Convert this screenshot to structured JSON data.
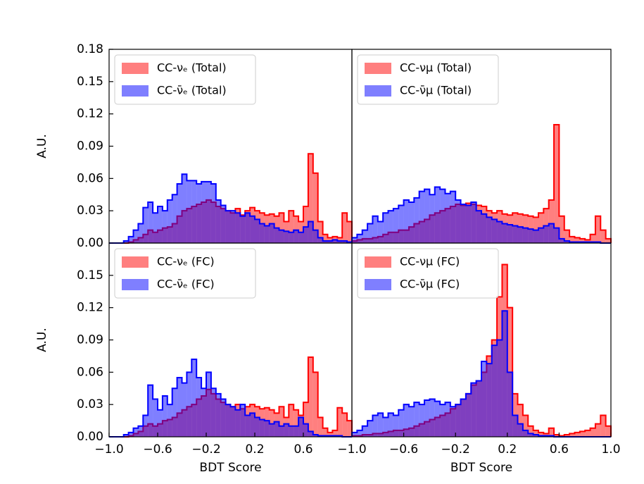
{
  "chart_data": [
    {
      "type": "histogram",
      "bins": [
        -1,
        -0.96,
        -0.92,
        -0.88,
        -0.84,
        -0.8,
        -0.76,
        -0.72,
        -0.68,
        -0.64,
        -0.6,
        -0.56,
        -0.52,
        -0.48,
        -0.44,
        -0.4,
        -0.36,
        -0.32,
        -0.28,
        -0.24,
        -0.2,
        -0.16,
        -0.12,
        -0.08,
        -0.04,
        0,
        0.04,
        0.08,
        0.12,
        0.16,
        0.2,
        0.24,
        0.28,
        0.32,
        0.36,
        0.4,
        0.44,
        0.48,
        0.52,
        0.56,
        0.6,
        0.64,
        0.68,
        0.72,
        0.76,
        0.8,
        0.84,
        0.88,
        0.92,
        0.96,
        1
      ],
      "series": [
        {
          "name": "CC-νₑ (Total)",
          "color": "#ff0000",
          "values": [
            0,
            0,
            0,
            0,
            0.001,
            0.003,
            0.005,
            0.008,
            0.012,
            0.01,
            0.012,
            0.014,
            0.015,
            0.018,
            0.025,
            0.03,
            0.032,
            0.034,
            0.036,
            0.038,
            0.04,
            0.038,
            0.034,
            0.032,
            0.03,
            0.028,
            0.032,
            0.026,
            0.03,
            0.033,
            0.03,
            0.028,
            0.026,
            0.027,
            0.025,
            0.028,
            0.02,
            0.03,
            0.025,
            0.02,
            0.034,
            0.083,
            0.065,
            0.02,
            0.008,
            0.005,
            0.006,
            0.005,
            0.028,
            0.02
          ]
        },
        {
          "name": "CC-ν̄ₑ (Total)",
          "color": "#0000ff",
          "values": [
            0,
            0,
            0,
            0.002,
            0.006,
            0.012,
            0.018,
            0.033,
            0.038,
            0.028,
            0.034,
            0.03,
            0.04,
            0.045,
            0.055,
            0.064,
            0.058,
            0.058,
            0.055,
            0.057,
            0.057,
            0.055,
            0.04,
            0.035,
            0.03,
            0.03,
            0.028,
            0.025,
            0.028,
            0.025,
            0.022,
            0.018,
            0.016,
            0.018,
            0.014,
            0.012,
            0.011,
            0.01,
            0.012,
            0.01,
            0.015,
            0.02,
            0.012,
            0.005,
            0.002,
            0.002,
            0.003,
            0.002,
            0.002,
            0.001
          ]
        }
      ],
      "xlim": [
        -1,
        1
      ],
      "ylim": [
        0,
        0.18
      ],
      "yticks": [
        {
          "value": 0,
          "label": "0.00"
        },
        0.03,
        0.06,
        0.09,
        0.12,
        0.15,
        0.18
      ],
      "ylabel": "A.U.",
      "legend": "upper left"
    },
    {
      "type": "histogram",
      "bins": [
        -1,
        -0.96,
        -0.92,
        -0.88,
        -0.84,
        -0.8,
        -0.76,
        -0.72,
        -0.68,
        -0.64,
        -0.6,
        -0.56,
        -0.52,
        -0.48,
        -0.44,
        -0.4,
        -0.36,
        -0.32,
        -0.28,
        -0.24,
        -0.2,
        -0.16,
        -0.12,
        -0.08,
        -0.04,
        0,
        0.04,
        0.08,
        0.12,
        0.16,
        0.2,
        0.24,
        0.28,
        0.32,
        0.36,
        0.4,
        0.44,
        0.48,
        0.52,
        0.56,
        0.6,
        0.64,
        0.68,
        0.72,
        0.76,
        0.8,
        0.84,
        0.88,
        0.92,
        0.96,
        1
      ],
      "series": [
        {
          "name": "CC-νμ (Total)",
          "color": "#ff0000",
          "values": [
            0.002,
            0.003,
            0.004,
            0.004,
            0.005,
            0.006,
            0.008,
            0.01,
            0.01,
            0.012,
            0.012,
            0.015,
            0.018,
            0.02,
            0.022,
            0.026,
            0.028,
            0.03,
            0.032,
            0.034,
            0.036,
            0.035,
            0.037,
            0.036,
            0.035,
            0.034,
            0.03,
            0.028,
            0.03,
            0.027,
            0.026,
            0.028,
            0.027,
            0.026,
            0.025,
            0.024,
            0.028,
            0.032,
            0.04,
            0.11,
            0.025,
            0.012,
            0.006,
            0.005,
            0.004,
            0.003,
            0.008,
            0.025,
            0.012,
            0.004
          ]
        },
        {
          "name": "CC-ν̄μ (Total)",
          "color": "#0000ff",
          "values": [
            0.005,
            0.008,
            0.012,
            0.018,
            0.025,
            0.02,
            0.028,
            0.03,
            0.032,
            0.035,
            0.04,
            0.038,
            0.042,
            0.048,
            0.05,
            0.045,
            0.052,
            0.05,
            0.046,
            0.048,
            0.04,
            0.036,
            0.035,
            0.038,
            0.03,
            0.027,
            0.024,
            0.022,
            0.02,
            0.018,
            0.017,
            0.016,
            0.015,
            0.014,
            0.013,
            0.012,
            0.014,
            0.016,
            0.018,
            0.014,
            0.004,
            0.002,
            0.001,
            0.001,
            0.001,
            0.001,
            0.001,
            0.001,
            0,
            0
          ]
        }
      ],
      "xlim": [
        -1,
        1
      ],
      "ylim": [
        0,
        0.18
      ],
      "legend": "upper left"
    },
    {
      "type": "histogram",
      "bins": [
        -1,
        -0.96,
        -0.92,
        -0.88,
        -0.84,
        -0.8,
        -0.76,
        -0.72,
        -0.68,
        -0.64,
        -0.6,
        -0.56,
        -0.52,
        -0.48,
        -0.44,
        -0.4,
        -0.36,
        -0.32,
        -0.28,
        -0.24,
        -0.2,
        -0.16,
        -0.12,
        -0.08,
        -0.04,
        0,
        0.04,
        0.08,
        0.12,
        0.16,
        0.2,
        0.24,
        0.28,
        0.32,
        0.36,
        0.4,
        0.44,
        0.48,
        0.52,
        0.56,
        0.6,
        0.64,
        0.68,
        0.72,
        0.76,
        0.8,
        0.84,
        0.88,
        0.92,
        0.96,
        1
      ],
      "series": [
        {
          "name": "CC-νₑ (FC)",
          "color": "#ff0000",
          "values": [
            0,
            0,
            0,
            0,
            0.001,
            0.003,
            0.005,
            0.01,
            0.012,
            0.01,
            0.012,
            0.015,
            0.016,
            0.018,
            0.022,
            0.025,
            0.028,
            0.03,
            0.035,
            0.038,
            0.044,
            0.04,
            0.035,
            0.032,
            0.03,
            0.028,
            0.03,
            0.026,
            0.028,
            0.03,
            0.028,
            0.026,
            0.027,
            0.025,
            0.022,
            0.028,
            0.018,
            0.03,
            0.025,
            0.02,
            0.032,
            0.074,
            0.06,
            0.018,
            0.008,
            0.004,
            0.006,
            0.027,
            0.022,
            0.015
          ]
        },
        {
          "name": "CC-ν̄ₑ (FC)",
          "color": "#0000ff",
          "values": [
            0,
            0,
            0,
            0.002,
            0.004,
            0.008,
            0.01,
            0.02,
            0.048,
            0.035,
            0.025,
            0.038,
            0.03,
            0.045,
            0.055,
            0.05,
            0.06,
            0.072,
            0.055,
            0.045,
            0.06,
            0.045,
            0.04,
            0.035,
            0.03,
            0.028,
            0.025,
            0.03,
            0.02,
            0.022,
            0.018,
            0.016,
            0.015,
            0.012,
            0.014,
            0.01,
            0.012,
            0.01,
            0.01,
            0.018,
            0.012,
            0.005,
            0.002,
            0.001,
            0.001,
            0.001,
            0.001,
            0.001,
            0,
            0
          ]
        }
      ],
      "xlim": [
        -1,
        1
      ],
      "ylim": [
        0,
        0.18
      ],
      "yticks": [
        {
          "value": 0,
          "label": "0.00"
        },
        0.03,
        0.06,
        0.09,
        0.12,
        0.15
      ],
      "xticks": [
        {
          "value": -1,
          "label": "−1.0"
        },
        {
          "value": -0.6,
          "label": "−0.6"
        },
        {
          "value": -0.2,
          "label": "−0.2"
        },
        0.2,
        0.6
      ],
      "ylabel": "A.U.",
      "xlabel": "BDT Score",
      "legend": "upper left"
    },
    {
      "type": "histogram",
      "bins": [
        -1,
        -0.96,
        -0.92,
        -0.88,
        -0.84,
        -0.8,
        -0.76,
        -0.72,
        -0.68,
        -0.64,
        -0.6,
        -0.56,
        -0.52,
        -0.48,
        -0.44,
        -0.4,
        -0.36,
        -0.32,
        -0.28,
        -0.24,
        -0.2,
        -0.16,
        -0.12,
        -0.08,
        -0.04,
        0,
        0.04,
        0.08,
        0.12,
        0.16,
        0.2,
        0.24,
        0.28,
        0.32,
        0.36,
        0.4,
        0.44,
        0.48,
        0.52,
        0.56,
        0.6,
        0.64,
        0.68,
        0.72,
        0.76,
        0.8,
        0.84,
        0.88,
        0.92,
        0.96,
        1
      ],
      "series": [
        {
          "name": "CC-νμ (FC)",
          "color": "#ff0000",
          "values": [
            0.001,
            0.001,
            0.002,
            0.002,
            0.003,
            0.003,
            0.004,
            0.005,
            0.006,
            0.006,
            0.007,
            0.008,
            0.01,
            0.012,
            0.014,
            0.016,
            0.018,
            0.02,
            0.022,
            0.026,
            0.03,
            0.035,
            0.04,
            0.048,
            0.052,
            0.06,
            0.075,
            0.09,
            0.13,
            0.16,
            0.12,
            0.04,
            0.03,
            0.02,
            0.01,
            0.006,
            0.004,
            0.003,
            0.008,
            0.002,
            0.001,
            0.002,
            0.003,
            0.004,
            0.005,
            0.006,
            0.008,
            0.012,
            0.02,
            0.01
          ]
        },
        {
          "name": "CC-ν̄μ (FC)",
          "color": "#0000ff",
          "values": [
            0.004,
            0.006,
            0.01,
            0.015,
            0.02,
            0.022,
            0.018,
            0.022,
            0.02,
            0.025,
            0.03,
            0.028,
            0.032,
            0.03,
            0.034,
            0.035,
            0.033,
            0.03,
            0.032,
            0.028,
            0.03,
            0.035,
            0.04,
            0.05,
            0.052,
            0.07,
            0.068,
            0.085,
            0.09,
            0.117,
            0.06,
            0.02,
            0.012,
            0.006,
            0.003,
            0.002,
            0.001,
            0.001,
            0.001,
            0,
            0,
            0,
            0,
            0,
            0,
            0,
            0,
            0,
            0,
            0
          ]
        }
      ],
      "xlim": [
        -1,
        1
      ],
      "ylim": [
        0,
        0.18
      ],
      "xticks": [
        {
          "value": -1,
          "label": "−1.0"
        },
        {
          "value": -0.6,
          "label": "−0.6"
        },
        {
          "value": -0.2,
          "label": "−0.2"
        },
        0.2,
        0.6,
        {
          "value": 1,
          "label": "1.0"
        }
      ],
      "xlabel": "BDT Score",
      "legend": "upper left"
    }
  ]
}
